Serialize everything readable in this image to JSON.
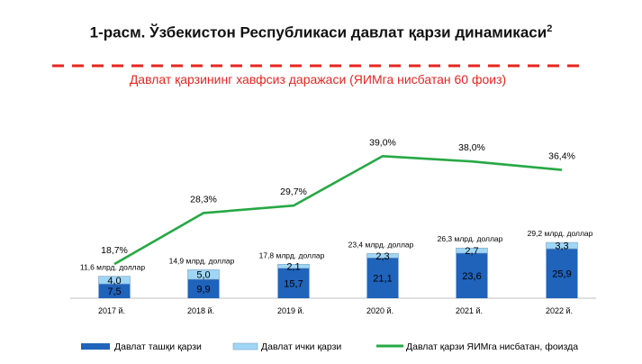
{
  "title": {
    "text": "1-расм. Ўзбекистон Республикаси давлат қарзи динамикаси",
    "superscript": "2"
  },
  "threshold": {
    "label": "Давлат қарзининг хавфсиз даражаси (ЯИМга нисбатан 60 фоиз)",
    "color": "#e8251f"
  },
  "colors": {
    "external": "#1f63bb",
    "internal": "#9fd6f5",
    "line": "#27a844",
    "axis": "#bfbfbf",
    "bar_border": "#7f9fbf"
  },
  "chart_data": {
    "type": "bar",
    "stacked": true,
    "categories": [
      "2017 й.",
      "2018 й.",
      "2019 й.",
      "2020 й.",
      "2021 й.",
      "2022 й."
    ],
    "series": [
      {
        "name": "Давлат ташқи қарзи",
        "values": [
          7.5,
          9.9,
          15.7,
          21.1,
          23.6,
          25.9
        ]
      },
      {
        "name": "Давлат ички қарзи",
        "values": [
          4.0,
          5.0,
          2.1,
          2.3,
          2.7,
          3.3
        ]
      }
    ],
    "totals": [
      "11,6 млрд. доллар",
      "14,9 млрд. доллар",
      "17,8 млрд. доллар",
      "23,4 млрд. доллар",
      "26,3 млрд. доллар",
      "29,2 млрд. доллар"
    ],
    "bar_labels_external": [
      "7,5",
      "9,9",
      "15,7",
      "21,1",
      "23,6",
      "25,9"
    ],
    "bar_labels_internal": [
      "4,0",
      "5,0",
      "2,1",
      "2,3",
      "2,7",
      "3,3"
    ],
    "line_series": {
      "name": "Давлат қарзи ЯИМга нисбатан, фоизда",
      "values": [
        18.7,
        28.3,
        29.7,
        39.0,
        38.0,
        36.4
      ],
      "labels": [
        "18,7%",
        "28,3%",
        "29,7%",
        "39,0%",
        "38,0%",
        "36,4%"
      ]
    },
    "legend_position": "bottom",
    "grid": false
  }
}
